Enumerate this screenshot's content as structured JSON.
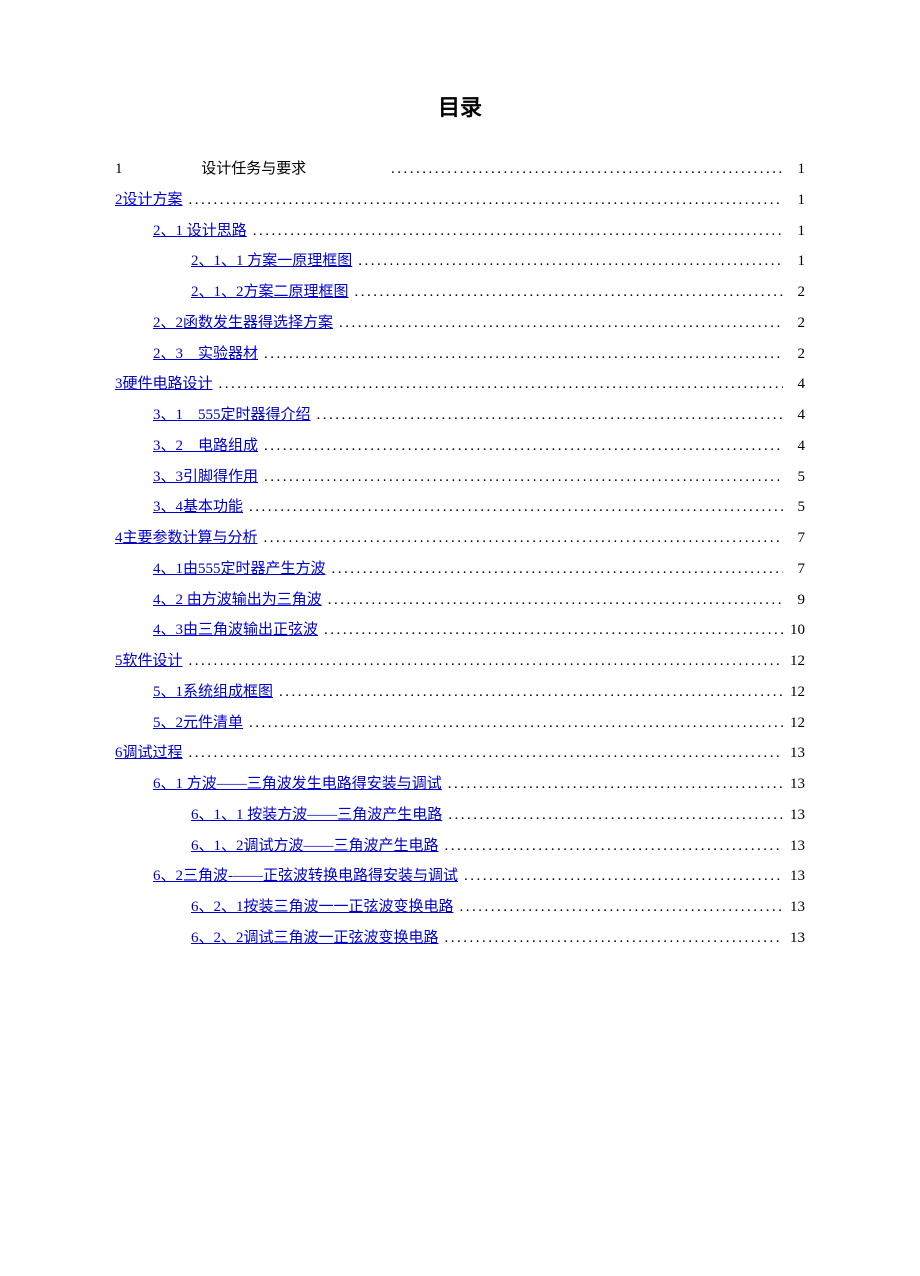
{
  "title": "目录",
  "entries": [
    {
      "level": 0,
      "label_num": "1",
      "label_text": "设计任务与要求",
      "page": "1",
      "link": false,
      "special": true
    },
    {
      "level": 0,
      "label": "2设计方案",
      "page": "1",
      "link": true
    },
    {
      "level": 1,
      "label": "2、1 设计思路",
      "page": "1",
      "link": true
    },
    {
      "level": 2,
      "label": "2、1、1 方案一原理框图",
      "page": "1",
      "link": true
    },
    {
      "level": 2,
      "label": "2、1、2方案二原理框图",
      "page": "2",
      "link": true
    },
    {
      "level": 1,
      "label": "2、2函数发生器得选择方案",
      "page": "2",
      "link": true
    },
    {
      "level": 1,
      "label": "2、3　实验器材",
      "page": "2",
      "link": true
    },
    {
      "level": 0,
      "label": "3硬件电路设计",
      "page": "4",
      "link": true
    },
    {
      "level": 1,
      "label": "3、1　555定时器得介绍",
      "page": "4",
      "link": true
    },
    {
      "level": 1,
      "label": "3、2　电路组成",
      "page": "4",
      "link": true
    },
    {
      "level": 1,
      "label": "3、3引脚得作用",
      "page": "5",
      "link": true
    },
    {
      "level": 1,
      "label": "3、4基本功能",
      "page": "5",
      "link": true
    },
    {
      "level": 0,
      "label": "4主要参数计算与分析",
      "page": "7",
      "link": true
    },
    {
      "level": 1,
      "label": "4、1由555定时器产生方波",
      "page": "7",
      "link": true
    },
    {
      "level": 1,
      "label": "4、2 由方波输出为三角波",
      "page": "9",
      "link": true
    },
    {
      "level": 1,
      "label": "4、3由三角波输出正弦波",
      "page": "10",
      "link": true
    },
    {
      "level": 0,
      "label": "5软件设计",
      "page": "12",
      "link": true
    },
    {
      "level": 1,
      "label": "5、1系统组成框图",
      "page": "12",
      "link": true
    },
    {
      "level": 1,
      "label": "5、2元件清单",
      "page": "12",
      "link": true
    },
    {
      "level": 0,
      "label": "6调试过程",
      "page": "13",
      "link": true
    },
    {
      "level": 1,
      "label": "6、1 方波——三角波发生电路得安装与调试",
      "page": "13",
      "link": true
    },
    {
      "level": 2,
      "label": "6、1、1 按装方波——三角波产生电路",
      "page": "13",
      "link": true
    },
    {
      "level": 2,
      "label": "6、1、2调试方波——三角波产生电路",
      "page": "13",
      "link": true
    },
    {
      "level": 1,
      "label": "6、2三角波-——正弦波转换电路得安装与调试",
      "page": "13",
      "link": true
    },
    {
      "level": 2,
      "label": "6、2、1按装三角波一一正弦波变换电路",
      "page": "13",
      "link": true
    },
    {
      "level": 2,
      "label": "6、2、2调试三角波一正弦波变换电路",
      "page": "13",
      "link": true
    }
  ]
}
